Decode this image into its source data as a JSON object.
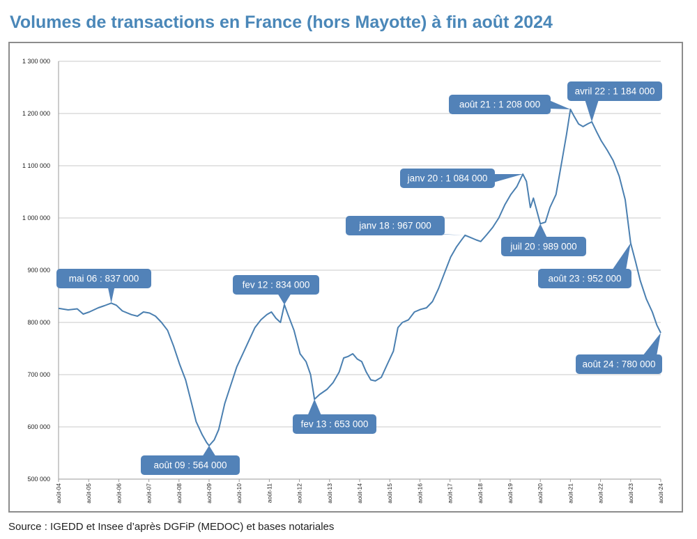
{
  "title": "Volumes de transactions en France (hors Mayotte) à fin août 2024",
  "source": "Source : IGEDD et Insee d’après DGFiP (MEDOC) et bases notariales",
  "colors": {
    "line": "#4a7fb0",
    "callout": "#5282b8",
    "title": "#4a87b8",
    "grid": "#c8c8c8"
  },
  "chart_data": {
    "type": "line",
    "title": "Volumes de transactions en France (hors Mayotte) à fin août 2024",
    "xlabel": "",
    "ylabel": "",
    "ylim": [
      500000,
      1300000
    ],
    "y_ticks": [
      "500 000",
      "600 000",
      "700 000",
      "800 000",
      "900 000",
      "1 000 000",
      "1 100 000",
      "1 200 000",
      "1 300 000"
    ],
    "x_ticks": [
      "août-04",
      "août-05",
      "août-06",
      "août-07",
      "août-08",
      "août-09",
      "août-10",
      "août-11",
      "août-12",
      "août-13",
      "août-14",
      "août-15",
      "août-16",
      "août-17",
      "août-18",
      "août-19",
      "août-20",
      "août-21",
      "août-22",
      "août-23",
      "août-24"
    ],
    "grid": true,
    "x_unit": "date (year fraction)",
    "series": [
      {
        "values": [
          [
            2004.58,
            827000
          ],
          [
            2004.9,
            824000
          ],
          [
            2005.2,
            826000
          ],
          [
            2005.4,
            816000
          ],
          [
            2005.6,
            820000
          ],
          [
            2005.9,
            828000
          ],
          [
            2006.1,
            832000
          ],
          [
            2006.33,
            837000
          ],
          [
            2006.5,
            833000
          ],
          [
            2006.7,
            822000
          ],
          [
            2007.0,
            815000
          ],
          [
            2007.2,
            812000
          ],
          [
            2007.4,
            820000
          ],
          [
            2007.6,
            818000
          ],
          [
            2007.8,
            812000
          ],
          [
            2008.0,
            800000
          ],
          [
            2008.2,
            785000
          ],
          [
            2008.4,
            755000
          ],
          [
            2008.6,
            720000
          ],
          [
            2008.8,
            690000
          ],
          [
            2009.0,
            645000
          ],
          [
            2009.15,
            610000
          ],
          [
            2009.35,
            585000
          ],
          [
            2009.5,
            570000
          ],
          [
            2009.58,
            564000
          ],
          [
            2009.75,
            575000
          ],
          [
            2009.9,
            595000
          ],
          [
            2010.1,
            645000
          ],
          [
            2010.3,
            680000
          ],
          [
            2010.5,
            715000
          ],
          [
            2010.7,
            740000
          ],
          [
            2010.9,
            765000
          ],
          [
            2011.1,
            790000
          ],
          [
            2011.3,
            805000
          ],
          [
            2011.5,
            815000
          ],
          [
            2011.65,
            820000
          ],
          [
            2011.8,
            808000
          ],
          [
            2011.95,
            800000
          ],
          [
            2012.08,
            834000
          ],
          [
            2012.2,
            815000
          ],
          [
            2012.4,
            785000
          ],
          [
            2012.6,
            740000
          ],
          [
            2012.8,
            725000
          ],
          [
            2012.95,
            700000
          ],
          [
            2013.08,
            653000
          ],
          [
            2013.25,
            662000
          ],
          [
            2013.5,
            672000
          ],
          [
            2013.7,
            685000
          ],
          [
            2013.9,
            705000
          ],
          [
            2014.05,
            732000
          ],
          [
            2014.2,
            735000
          ],
          [
            2014.35,
            740000
          ],
          [
            2014.5,
            730000
          ],
          [
            2014.65,
            725000
          ],
          [
            2014.8,
            705000
          ],
          [
            2014.95,
            690000
          ],
          [
            2015.1,
            688000
          ],
          [
            2015.3,
            695000
          ],
          [
            2015.5,
            720000
          ],
          [
            2015.7,
            745000
          ],
          [
            2015.85,
            790000
          ],
          [
            2016.0,
            800000
          ],
          [
            2016.2,
            805000
          ],
          [
            2016.4,
            820000
          ],
          [
            2016.6,
            825000
          ],
          [
            2016.8,
            828000
          ],
          [
            2017.0,
            840000
          ],
          [
            2017.2,
            865000
          ],
          [
            2017.4,
            895000
          ],
          [
            2017.6,
            925000
          ],
          [
            2017.8,
            945000
          ],
          [
            2017.95,
            957000
          ],
          [
            2018.08,
            967000
          ],
          [
            2018.25,
            963000
          ],
          [
            2018.45,
            958000
          ],
          [
            2018.6,
            955000
          ],
          [
            2018.8,
            968000
          ],
          [
            2019.0,
            982000
          ],
          [
            2019.2,
            1000000
          ],
          [
            2019.4,
            1025000
          ],
          [
            2019.6,
            1045000
          ],
          [
            2019.8,
            1060000
          ],
          [
            2020.0,
            1084000
          ],
          [
            2020.12,
            1070000
          ],
          [
            2020.25,
            1020000
          ],
          [
            2020.35,
            1038000
          ],
          [
            2020.58,
            989000
          ],
          [
            2020.75,
            992000
          ],
          [
            2020.9,
            1020000
          ],
          [
            2021.1,
            1045000
          ],
          [
            2021.3,
            1110000
          ],
          [
            2021.45,
            1160000
          ],
          [
            2021.58,
            1208000
          ],
          [
            2021.7,
            1195000
          ],
          [
            2021.85,
            1180000
          ],
          [
            2022.0,
            1175000
          ],
          [
            2022.15,
            1180000
          ],
          [
            2022.29,
            1184000
          ],
          [
            2022.45,
            1165000
          ],
          [
            2022.6,
            1148000
          ],
          [
            2022.8,
            1130000
          ],
          [
            2023.0,
            1110000
          ],
          [
            2023.2,
            1080000
          ],
          [
            2023.4,
            1035000
          ],
          [
            2023.58,
            952000
          ],
          [
            2023.75,
            915000
          ],
          [
            2023.9,
            880000
          ],
          [
            2024.1,
            845000
          ],
          [
            2024.3,
            820000
          ],
          [
            2024.45,
            795000
          ],
          [
            2024.58,
            780000
          ]
        ]
      }
    ],
    "annotations": [
      {
        "label": "mai 06 : 837 000",
        "x": 2006.33,
        "y": 837000
      },
      {
        "label": "août 09 : 564 000",
        "x": 2009.58,
        "y": 564000
      },
      {
        "label": "fev 12 : 834 000",
        "x": 2012.08,
        "y": 834000
      },
      {
        "label": "fev 13 : 653 000",
        "x": 2013.08,
        "y": 653000
      },
      {
        "label": "janv  18 : 967 000",
        "x": 2018.08,
        "y": 967000
      },
      {
        "label": "janv 20 : 1 084 000",
        "x": 2020.0,
        "y": 1084000
      },
      {
        "label": "juil 20 : 989 000",
        "x": 2020.58,
        "y": 989000
      },
      {
        "label": "août 21 : 1 208 000",
        "x": 2021.58,
        "y": 1208000
      },
      {
        "label": "avril 22 : 1 184 000",
        "x": 2022.29,
        "y": 1184000
      },
      {
        "label": "août 23 : 952 000",
        "x": 2023.58,
        "y": 952000
      },
      {
        "label": "août 24 : 780 000",
        "x": 2024.58,
        "y": 780000
      }
    ]
  }
}
